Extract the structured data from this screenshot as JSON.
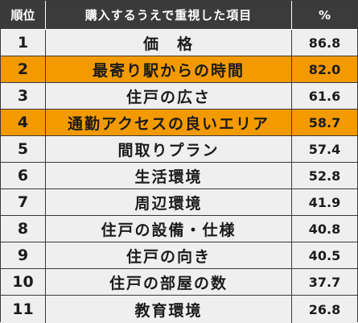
{
  "header": {
    "rank": "順位",
    "item": "購入するうえで重視した項目",
    "percent": "%"
  },
  "rows": [
    {
      "rank": "1",
      "item": "価　格",
      "percent": "86.8",
      "highlight": false
    },
    {
      "rank": "2",
      "item": "最寄り駅からの時間",
      "percent": "82.0",
      "highlight": true
    },
    {
      "rank": "3",
      "item": "住戸の広さ",
      "percent": "61.6",
      "highlight": false
    },
    {
      "rank": "4",
      "item": "通勤アクセスの良いエリア",
      "percent": "58.7",
      "highlight": true
    },
    {
      "rank": "5",
      "item": "間取りプラン",
      "percent": "57.4",
      "highlight": false
    },
    {
      "rank": "6",
      "item": "生活環境",
      "percent": "52.8",
      "highlight": false
    },
    {
      "rank": "7",
      "item": "周辺環境",
      "percent": "41.9",
      "highlight": false
    },
    {
      "rank": "8",
      "item": "住戸の設備・仕様",
      "percent": "40.8",
      "highlight": false
    },
    {
      "rank": "9",
      "item": "住戸の向き",
      "percent": "40.5",
      "highlight": false
    },
    {
      "rank": "10",
      "item": "住戸の部屋の数",
      "percent": "37.7",
      "highlight": false
    },
    {
      "rank": "11",
      "item": "教育環境",
      "percent": "26.8",
      "highlight": false
    }
  ],
  "colors": {
    "header_bg": "#3b3b3b",
    "row_bg": "#efefef",
    "highlight_bg": "#f39a00"
  }
}
